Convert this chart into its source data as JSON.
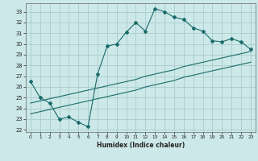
{
  "xlabel": "Humidex (Indice chaleur)",
  "background_color": "#cce8e8",
  "grid_color": "#aacccc",
  "line_color": "#1a6b6b",
  "xlim": [
    -0.5,
    23.5
  ],
  "ylim": [
    21.8,
    33.8
  ],
  "yticks": [
    22,
    23,
    24,
    25,
    26,
    27,
    28,
    29,
    30,
    31,
    32,
    33
  ],
  "xticks": [
    0,
    1,
    2,
    3,
    4,
    5,
    6,
    7,
    8,
    9,
    10,
    11,
    12,
    13,
    14,
    15,
    16,
    17,
    18,
    19,
    20,
    21,
    22,
    23
  ],
  "line1_x": [
    0,
    1,
    2,
    3,
    4,
    5,
    6,
    7,
    8,
    9,
    10,
    11,
    12,
    13,
    14,
    15,
    16,
    17,
    18,
    19,
    20,
    21,
    22,
    23
  ],
  "line1_y": [
    26.5,
    25.0,
    24.5,
    23.0,
    23.2,
    22.7,
    22.3,
    27.2,
    29.8,
    30.0,
    31.1,
    32.0,
    31.2,
    33.3,
    33.0,
    32.5,
    32.3,
    31.5,
    31.2,
    30.3,
    30.2,
    30.5,
    30.2,
    29.5
  ],
  "line2_x": [
    0,
    1,
    2,
    3,
    4,
    5,
    6,
    7,
    8,
    9,
    10,
    11,
    12,
    13,
    14,
    15,
    16,
    17,
    18,
    19,
    20,
    21,
    22,
    23
  ],
  "line2_y": [
    24.5,
    24.7,
    24.9,
    25.1,
    25.3,
    25.5,
    25.7,
    25.9,
    26.1,
    26.3,
    26.5,
    26.7,
    27.0,
    27.2,
    27.4,
    27.6,
    27.9,
    28.1,
    28.3,
    28.5,
    28.7,
    28.9,
    29.1,
    29.3
  ],
  "line3_x": [
    0,
    1,
    2,
    3,
    4,
    5,
    6,
    7,
    8,
    9,
    10,
    11,
    12,
    13,
    14,
    15,
    16,
    17,
    18,
    19,
    20,
    21,
    22,
    23
  ],
  "line3_y": [
    23.5,
    23.7,
    23.9,
    24.1,
    24.3,
    24.5,
    24.7,
    24.9,
    25.1,
    25.3,
    25.5,
    25.7,
    26.0,
    26.2,
    26.4,
    26.6,
    26.9,
    27.1,
    27.3,
    27.5,
    27.7,
    27.9,
    28.1,
    28.3
  ]
}
